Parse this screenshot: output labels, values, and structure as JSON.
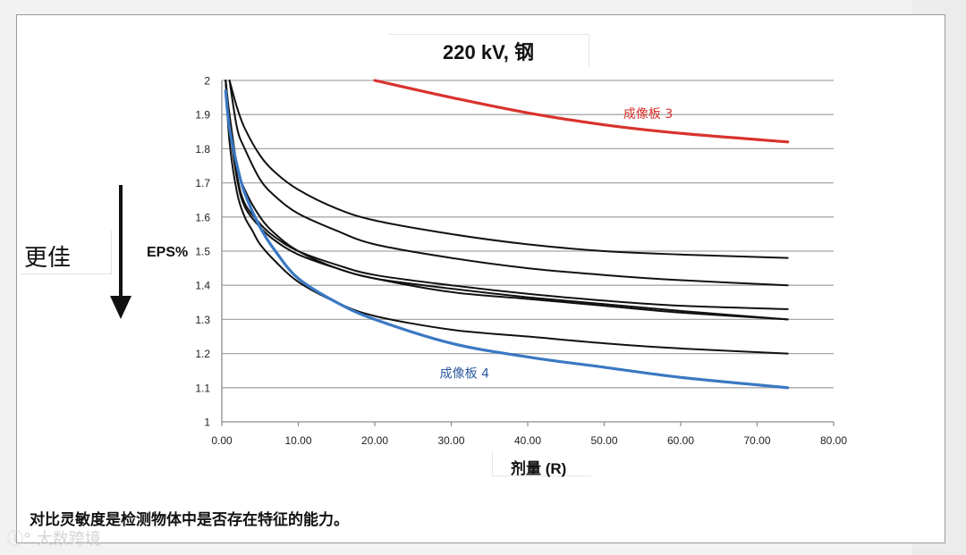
{
  "chart_data": {
    "type": "line",
    "title": "220 kV, 钢",
    "xlabel": "剂量 (R)",
    "ylabel": "EPS%",
    "xlim": [
      0,
      80
    ],
    "ylim": [
      1,
      2
    ],
    "xticks": [
      "0.00",
      "10.00",
      "20.00",
      "30.00",
      "40.00",
      "50.00",
      "60.00",
      "70.00",
      "80.00"
    ],
    "yticks": [
      "1",
      "1.1",
      "1.2",
      "1.3",
      "1.4",
      "1.5",
      "1.6",
      "1.7",
      "1.8",
      "1.9",
      "2"
    ],
    "grid": true,
    "series": [
      {
        "name": "成像板 3",
        "color": "#d9322d",
        "x": [
          20,
          30,
          40,
          50,
          60,
          74
        ],
        "y": [
          2.0,
          1.95,
          1.905,
          1.87,
          1.845,
          1.82
        ]
      },
      {
        "name": "成像板 4",
        "color": "#3a78c2",
        "x": [
          0.5,
          1,
          2,
          3,
          5,
          7,
          10,
          15,
          20,
          30,
          40,
          50,
          60,
          74
        ],
        "y": [
          1.97,
          1.86,
          1.75,
          1.67,
          1.57,
          1.5,
          1.42,
          1.35,
          1.3,
          1.23,
          1.19,
          1.16,
          1.13,
          1.1
        ]
      },
      {
        "name": "",
        "color": "#111111",
        "x": [
          1,
          2,
          3,
          5,
          7,
          10,
          15,
          20,
          30,
          40,
          50,
          60,
          74
        ],
        "y": [
          2.0,
          1.92,
          1.86,
          1.78,
          1.73,
          1.68,
          1.625,
          1.59,
          1.55,
          1.52,
          1.5,
          1.49,
          1.48
        ]
      },
      {
        "name": "",
        "color": "#111111",
        "x": [
          1,
          2,
          3,
          5,
          7,
          10,
          15,
          20,
          30,
          40,
          50,
          60,
          74
        ],
        "y": [
          2.0,
          1.86,
          1.8,
          1.71,
          1.66,
          1.61,
          1.56,
          1.52,
          1.48,
          1.45,
          1.43,
          1.415,
          1.4
        ]
      },
      {
        "name": "",
        "color": "#111111",
        "x": [
          0.5,
          1,
          2,
          3,
          5,
          7,
          10,
          15,
          20,
          30,
          40,
          50,
          60,
          74
        ],
        "y": [
          2.0,
          1.9,
          1.75,
          1.68,
          1.6,
          1.55,
          1.5,
          1.45,
          1.42,
          1.38,
          1.36,
          1.34,
          1.32,
          1.3
        ]
      },
      {
        "name": "",
        "color": "#111111",
        "x": [
          0.5,
          1,
          2,
          3,
          5,
          7,
          10,
          15,
          20,
          30,
          40,
          50,
          60,
          74
        ],
        "y": [
          2.0,
          1.88,
          1.72,
          1.64,
          1.58,
          1.54,
          1.5,
          1.46,
          1.43,
          1.4,
          1.375,
          1.355,
          1.34,
          1.33
        ]
      },
      {
        "name": "",
        "color": "#111111",
        "x": [
          0.5,
          1,
          2,
          3,
          5,
          7,
          10,
          15,
          20,
          30,
          40,
          50,
          60,
          74
        ],
        "y": [
          2.0,
          1.87,
          1.71,
          1.63,
          1.57,
          1.53,
          1.49,
          1.45,
          1.42,
          1.39,
          1.365,
          1.345,
          1.325,
          1.3
        ]
      },
      {
        "name": "",
        "color": "#111111",
        "x": [
          0.5,
          1,
          2,
          3,
          4,
          5,
          7,
          10,
          15,
          20,
          30,
          40,
          50,
          60,
          74
        ],
        "y": [
          2.0,
          1.82,
          1.67,
          1.6,
          1.56,
          1.52,
          1.47,
          1.41,
          1.35,
          1.31,
          1.27,
          1.25,
          1.23,
          1.215,
          1.2
        ]
      }
    ],
    "annotations": [
      "成像板 3",
      "成像板 4"
    ]
  },
  "side_label": "更佳",
  "caption": "对比灵敏度是检测物体中是否存在特征的能力。",
  "watermark": "大数跨境",
  "colors": {
    "grid": "#a8a8a8",
    "axis": "#8c8c8c",
    "accent_red": "#d9322d",
    "accent_blue": "#2c5a9e"
  }
}
